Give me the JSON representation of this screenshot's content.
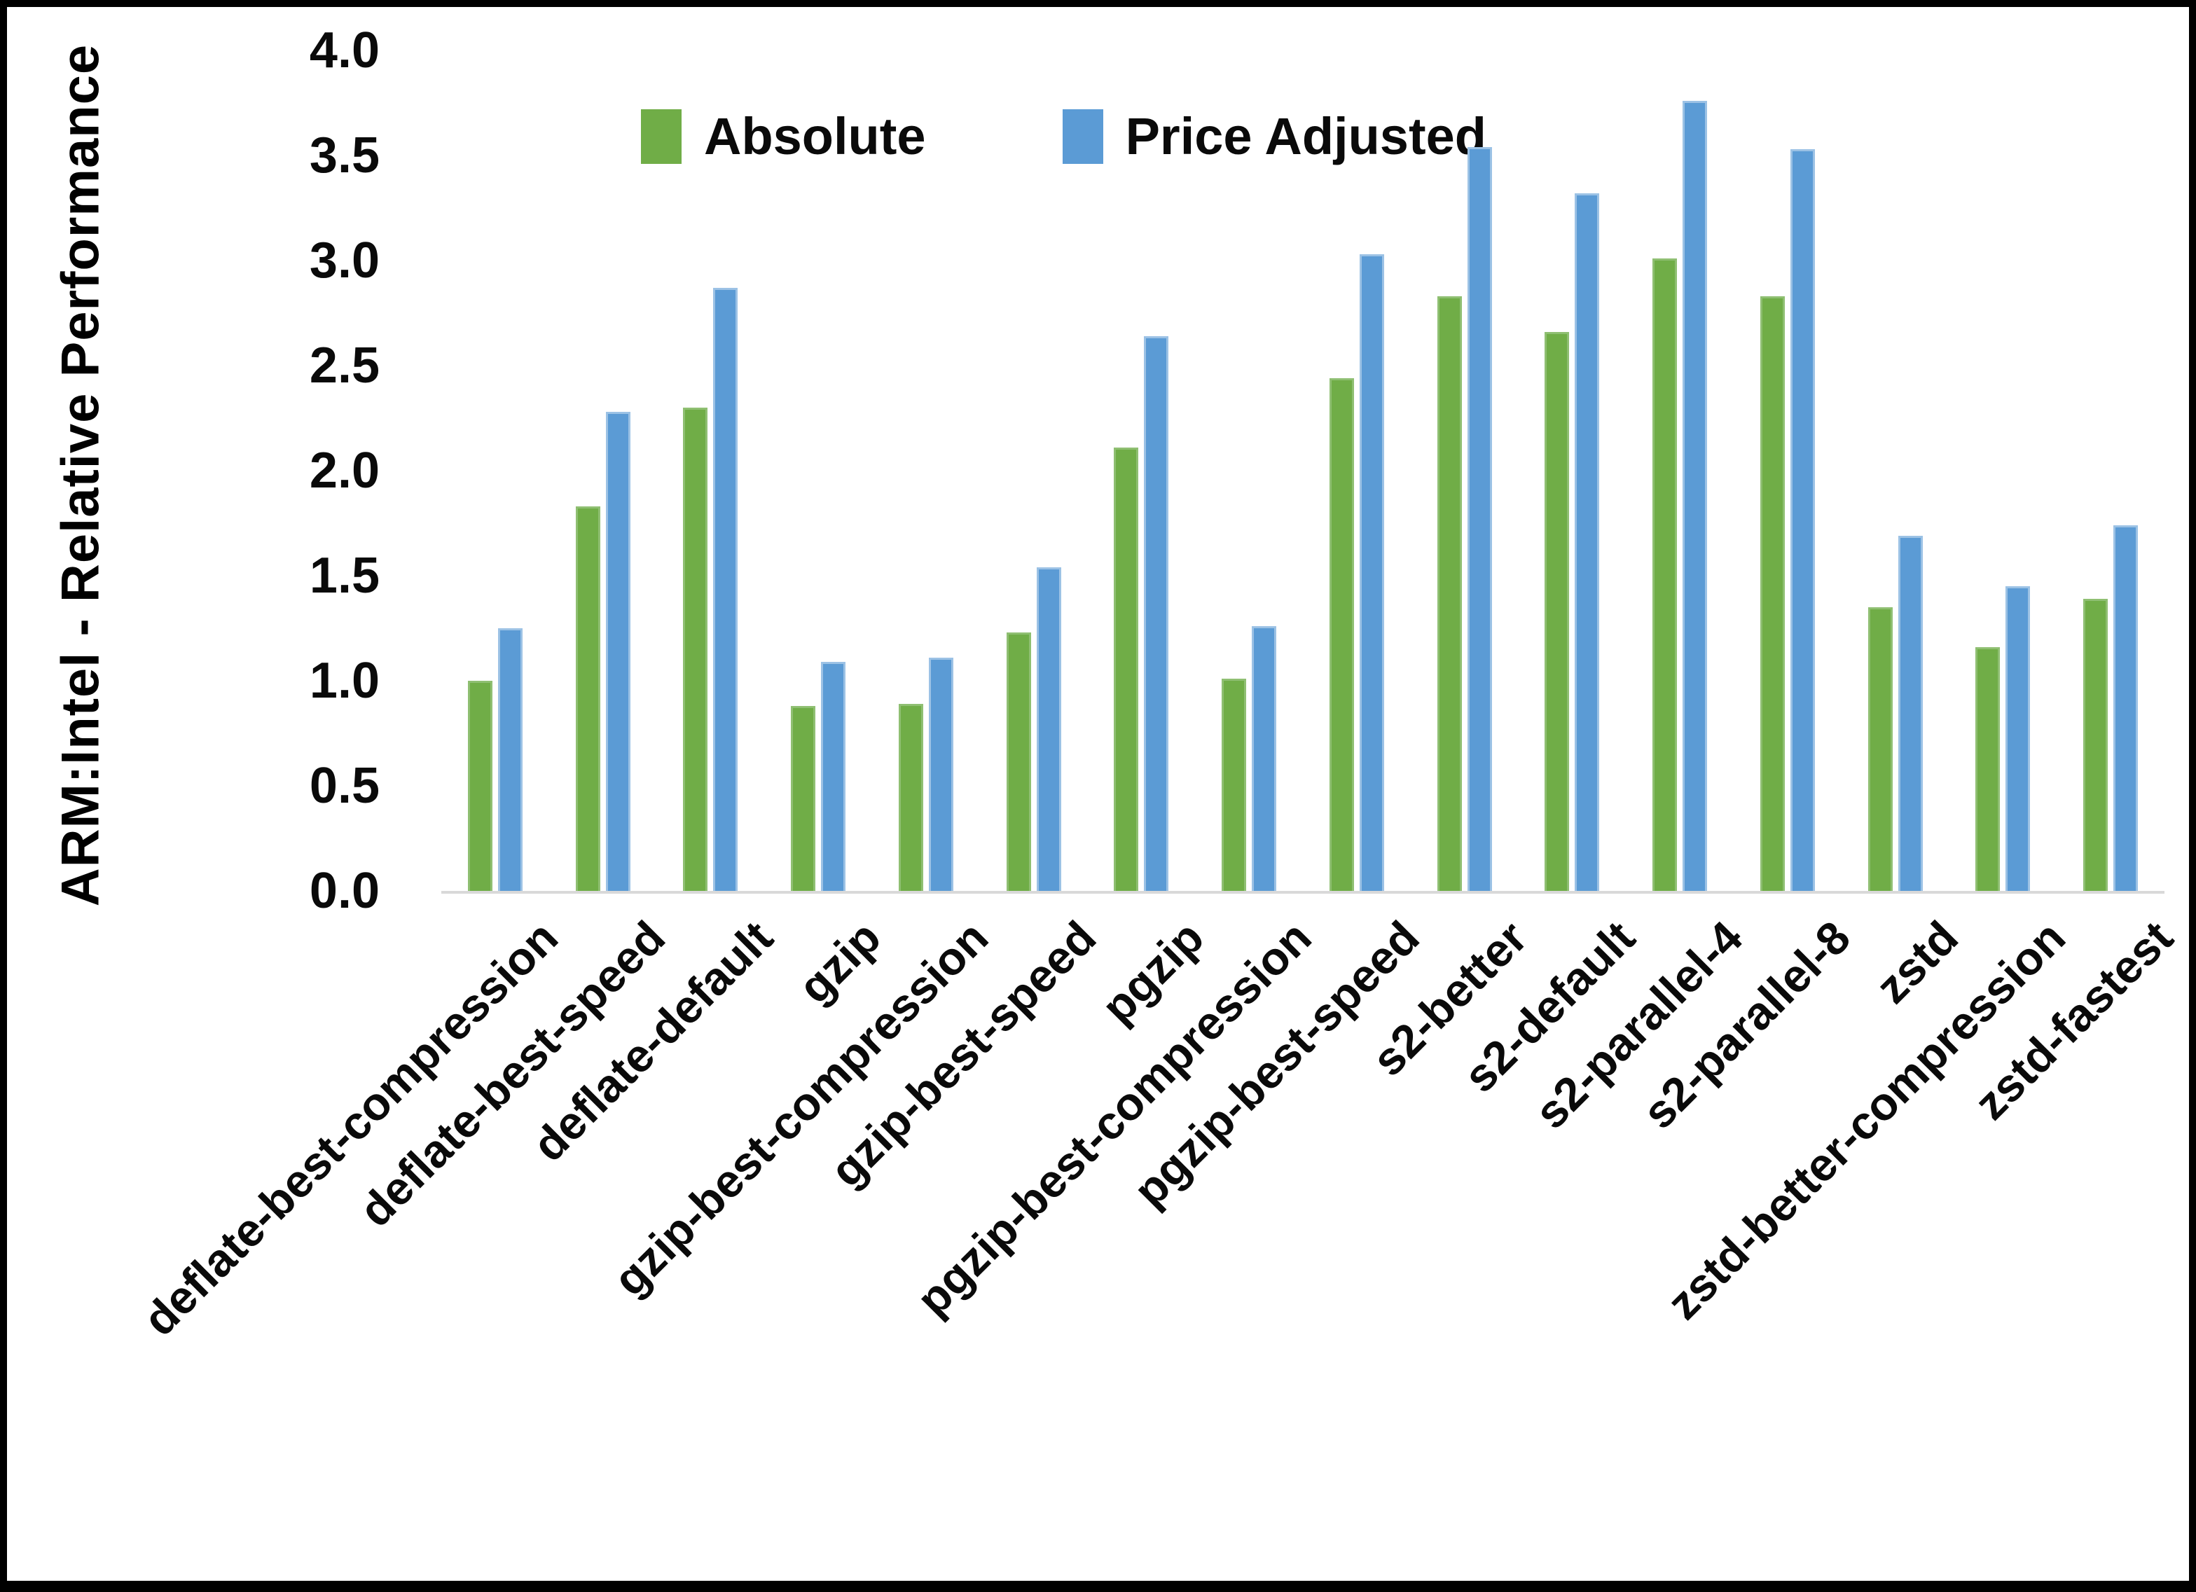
{
  "figure": {
    "background_color": "#FFFFFF",
    "frame_color": "#000000",
    "axis_line_color": "#D9D9D9",
    "y_axis_title": "ARM:Intel - Relative Performance"
  },
  "legend": {
    "items": [
      {
        "label": "Absolute",
        "color": "#70AD47"
      },
      {
        "label": "Price Adjusted",
        "color": "#5B9BD5"
      }
    ]
  },
  "chart_data": {
    "type": "bar",
    "title": "",
    "xlabel": "",
    "ylabel": "ARM:Intel - Relative Performance",
    "ylim": [
      0.0,
      4.0
    ],
    "ytick_step": 0.5,
    "ytick_labels": [
      "0.0",
      "0.5",
      "1.0",
      "1.5",
      "2.0",
      "2.5",
      "3.0",
      "3.5",
      "4.0"
    ],
    "grid": false,
    "legend_position": "top-center",
    "bar_colors": {
      "Absolute": "#70AD47",
      "Price Adjusted": "#5B9BD5"
    },
    "categories": [
      "deflate-best-compression",
      "deflate-best-speed",
      "deflate-default",
      "gzip",
      "gzip-best-compression",
      "gzip-best-speed",
      "pgzip",
      "pgzip-best-compression",
      "pgzip-best-speed",
      "s2-better",
      "s2-default",
      "s2-parallel-4",
      "s2-parallel-8",
      "zstd",
      "zstd-better-compression",
      "zstd-fastest"
    ],
    "series": [
      {
        "name": "Absolute",
        "color": "#70AD47",
        "values": [
          1.0,
          1.83,
          2.3,
          0.88,
          0.89,
          1.23,
          2.11,
          1.01,
          2.44,
          2.83,
          2.66,
          3.01,
          2.83,
          1.35,
          1.16,
          1.39
        ]
      },
      {
        "name": "Price Adjusted",
        "color": "#5B9BD5",
        "values": [
          1.25,
          2.28,
          2.87,
          1.09,
          1.11,
          1.54,
          2.64,
          1.26,
          3.03,
          3.54,
          3.32,
          3.76,
          3.53,
          1.69,
          1.45,
          1.74
        ]
      }
    ]
  }
}
